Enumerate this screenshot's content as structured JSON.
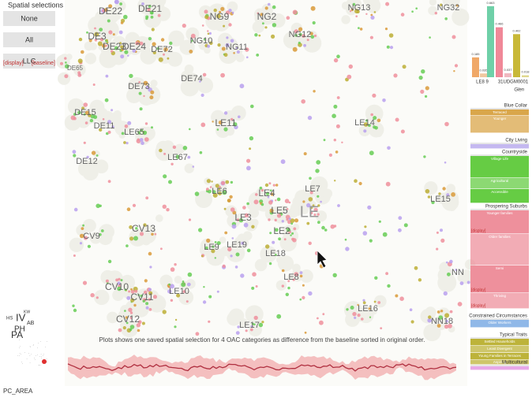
{
  "left_panel": {
    "title": "Spatial selections",
    "buttons": [
      "None",
      "All",
      "LLC"
    ],
    "links": [
      "[display]",
      "[baseline]"
    ]
  },
  "map": {
    "labels": [
      "DE22",
      "DE21",
      "NG9",
      "NG2",
      "NG13",
      "NG32",
      "DE3",
      "NG10",
      "NG12",
      "DE23",
      "DE24",
      "DE72",
      "NG11",
      "DE65",
      "DE74",
      "DE73",
      "DE15",
      "DE11",
      "LE65",
      "LE11",
      "LE14",
      "LE67",
      "DE12",
      "LE6",
      "LE4",
      "LE7",
      "LE15",
      "LE5",
      "LE",
      "LE3",
      "CV13",
      "LE2",
      "CV9",
      "LE9",
      "LE19",
      "LE18",
      "NN",
      "LE8",
      "CV10",
      "LE10",
      "CV11",
      "LE16",
      "CV12",
      "NN18",
      "LE17"
    ]
  },
  "caption": "Plots shows one saved spatial selection for 4 OAC categories as difference from the baseline sorted in original order.",
  "minimap": {
    "labels": [
      "IV",
      "PH",
      "PA",
      "AB",
      "KW",
      "HS"
    ],
    "area": "PC_AREA"
  },
  "bar_chart": {
    "values": [
      0.185,
      0.035,
      0.663,
      0.466,
      0.037,
      0.402,
      0.018
    ],
    "colors": [
      "#f0a868",
      "#f0c8a0",
      "#6fd0a8",
      "#f08898",
      "#f0b8c0",
      "#c8b838",
      "#e0d890"
    ],
    "groups": [
      "LE8 9",
      "31UDGM0001"
    ],
    "caption": "Glen"
  },
  "categories": [
    {
      "name": "Blue Collar",
      "color": "#d9a64a",
      "subgroups": [
        "Terraced",
        "Younger"
      ]
    },
    {
      "name": "City Living",
      "color": "#c4b8f0",
      "subgroups": []
    },
    {
      "name": "Countryside",
      "color": "#66cc44",
      "subgroups": [
        "Village Life",
        "Agricultural",
        "Accessible"
      ]
    },
    {
      "name": "Prospering Suburbs",
      "color": "#ee909c",
      "subgroups": [
        "Younger families",
        "Older families",
        "Semi",
        "Thriving"
      ]
    },
    {
      "name": "Constrained Circumstances",
      "color": "#90b8e8",
      "subgroups": [
        "Older Workers"
      ]
    },
    {
      "name": "Typical Traits",
      "color": "#bdb33a",
      "subgroups": [
        "Settled Households",
        "Least Divergent",
        "Young Families in Terraces",
        "Aspiring"
      ]
    },
    {
      "name": "Multicultural",
      "color": "#e8a8e8",
      "subgroups": []
    }
  ],
  "display_link": "[display]"
}
